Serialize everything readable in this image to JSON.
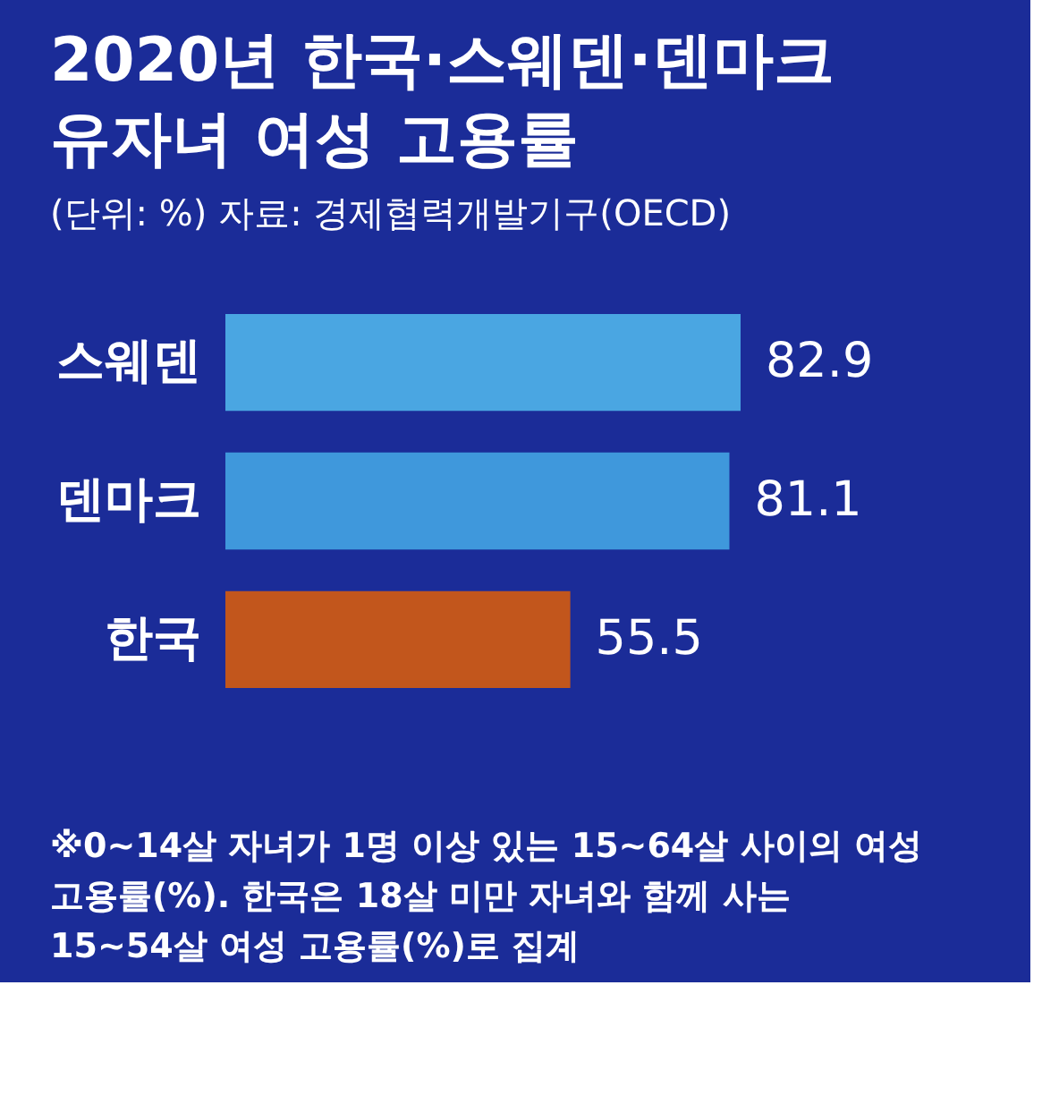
{
  "chart_data": {
    "type": "bar",
    "orientation": "horizontal",
    "title": "2020년 한국·스웨덴·덴마크 유자녀 여성 고용률",
    "subtitle": "(단위: %) 자료: 경제협력개발기구(OECD)",
    "categories": [
      "스웨덴",
      "덴마크",
      "한국"
    ],
    "values": [
      82.9,
      81.1,
      55.5
    ],
    "colors": [
      "#4aa6e2",
      "#3f98dc",
      "#c2561c"
    ],
    "data_labels": true,
    "annotations": [
      "※0~14살 자녀가 1명 이상 있는 15~64살 사이의 여성 고용률(%). 한국은 18살 미만 자녀와 함께 사는 15~54살 여성 고용률(%)로 집계"
    ]
  }
}
